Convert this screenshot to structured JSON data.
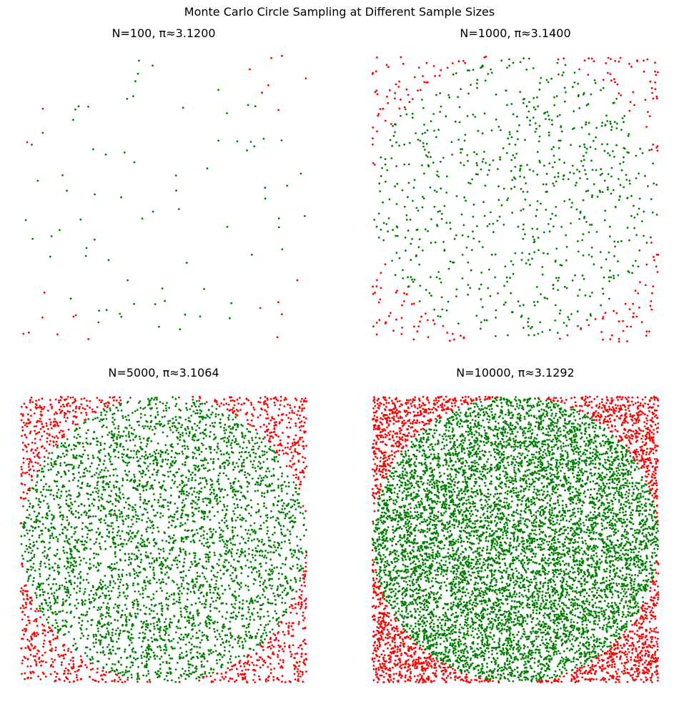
{
  "figure": {
    "suptitle": "Monte Carlo Circle Sampling at Different Sample Sizes"
  },
  "colors": {
    "inside": "#008000",
    "outside": "#ff0000",
    "background": "#ffffff"
  },
  "chart_data": [
    {
      "type": "scatter",
      "title": "N=100, π≈3.1200",
      "n": 100,
      "pi_estimate": 3.12,
      "inside_count": 78,
      "outside_count": 22,
      "xlim": [
        -1,
        1
      ],
      "ylim": [
        -1,
        1
      ],
      "axis_visible": false,
      "aspect": "equal",
      "series": [
        {
          "name": "inside",
          "color": "#008000"
        },
        {
          "name": "outside",
          "color": "#ff0000"
        }
      ]
    },
    {
      "type": "scatter",
      "title": "N=1000, π≈3.1400",
      "n": 1000,
      "pi_estimate": 3.14,
      "inside_count": 785,
      "outside_count": 215,
      "xlim": [
        -1,
        1
      ],
      "ylim": [
        -1,
        1
      ],
      "axis_visible": false,
      "aspect": "equal",
      "series": [
        {
          "name": "inside",
          "color": "#008000"
        },
        {
          "name": "outside",
          "color": "#ff0000"
        }
      ]
    },
    {
      "type": "scatter",
      "title": "N=5000, π≈3.1064",
      "n": 5000,
      "pi_estimate": 3.1064,
      "inside_count": 3883,
      "outside_count": 1117,
      "xlim": [
        -1,
        1
      ],
      "ylim": [
        -1,
        1
      ],
      "axis_visible": false,
      "aspect": "equal",
      "series": [
        {
          "name": "inside",
          "color": "#008000"
        },
        {
          "name": "outside",
          "color": "#ff0000"
        }
      ]
    },
    {
      "type": "scatter",
      "title": "N=10000, π≈3.1292",
      "n": 10000,
      "pi_estimate": 3.1292,
      "inside_count": 7823,
      "outside_count": 2177,
      "xlim": [
        -1,
        1
      ],
      "ylim": [
        -1,
        1
      ],
      "axis_visible": false,
      "aspect": "equal",
      "series": [
        {
          "name": "inside",
          "color": "#008000"
        },
        {
          "name": "outside",
          "color": "#ff0000"
        }
      ]
    }
  ]
}
